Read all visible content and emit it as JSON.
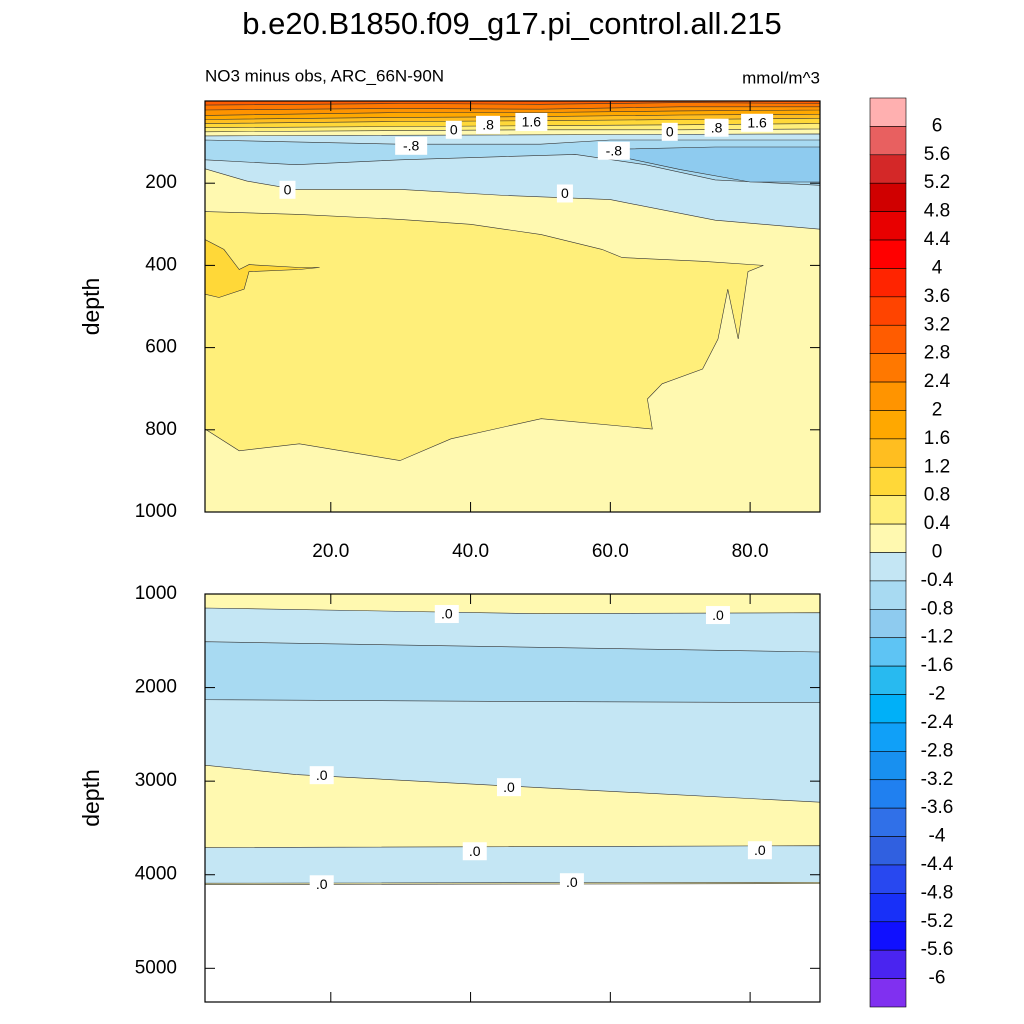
{
  "chart_data": {
    "type": "contour",
    "title": "b.e20.B1850.f09_g17.pi_control.all.215",
    "subtitle": "NO3 minus obs, ARC_66N-90N",
    "units": "mmol/m^3",
    "xlim": [
      2,
      90
    ],
    "xticks": [
      {
        "value": 20,
        "label": "20.0"
      },
      {
        "value": 40,
        "label": "40.0"
      },
      {
        "value": 60,
        "label": "60.0"
      },
      {
        "value": 80,
        "label": "80.0"
      }
    ],
    "colorbar": {
      "levels": [
        6,
        5.6,
        5.2,
        4.8,
        4.4,
        4,
        3.6,
        3.2,
        2.8,
        2.4,
        2,
        1.6,
        1.2,
        0.8,
        0.4,
        0,
        -0.4,
        -0.8,
        -1.2,
        -1.6,
        -2,
        -2.4,
        -2.8,
        -3.2,
        -3.6,
        -4,
        -4.4,
        -4.8,
        -5.2,
        -5.6,
        -6
      ],
      "colors": [
        "#ffb0b0",
        "#e86060",
        "#d42828",
        "#d00000",
        "#e80000",
        "#ff0000",
        "#ff2400",
        "#ff4400",
        "#ff5c00",
        "#ff7800",
        "#ff9400",
        "#ffa800",
        "#ffbe20",
        "#ffd838",
        "#ffef7a",
        "#fff9b0",
        "#c4e6f4",
        "#a8daf2",
        "#8ecbef",
        "#5ec4f4",
        "#28baf0",
        "#00b0f8",
        "#10a0f8",
        "#1890f0",
        "#2080f0",
        "#3070e8",
        "#3060e0",
        "#2848f0",
        "#1830f8",
        "#1010ff",
        "#4a24f0",
        "#8030f0"
      ]
    },
    "panels": [
      {
        "ylabel": "depth",
        "ylim": [
          0,
          1000
        ],
        "yticks": [
          200,
          400,
          600,
          800,
          1000
        ],
        "regions": [
          {
            "level": 0,
            "x": [
              2,
              90,
              90,
              2
            ],
            "y": [
              0,
              0,
              1000,
              1000
            ]
          },
          {
            "level": -0.4,
            "x": [
              2,
              90,
              90,
              75,
              60,
              45,
              30,
              15,
              8,
              2
            ],
            "y": [
              85,
              80,
              312,
              290,
              240,
              230,
              215,
              215,
              195,
              165
            ]
          },
          {
            "level": -0.8,
            "x": [
              2,
              30,
              50,
              60,
              90,
              90,
              75,
              65,
              55,
              30,
              15,
              2
            ],
            "y": [
              95,
              105,
              105,
              95,
              95,
              205,
              192,
              155,
              130,
              143,
              155,
              143
            ]
          },
          {
            "level": -1.2,
            "x": [
              59,
              75,
              90,
              90,
              80,
              70,
              62
            ],
            "y": [
              118,
              112,
              112,
              197,
              197,
              167,
              138
            ]
          },
          {
            "level": 0.4,
            "x": [
              2,
              15.5,
              29.9,
              40,
              50.1,
              58.8,
              61.7,
              73.2,
              81.9,
              79.7,
              78.3,
              76.8,
              75.4,
              73.2,
              67.4,
              65.3,
              66,
              50.1,
              37.2,
              29.9,
              15.5,
              6.9,
              2
            ],
            "y": [
              269,
              276,
              288,
              300,
              325,
              361,
              381,
              390,
              400,
              415,
              579,
              458,
              579,
              652,
              688,
              725,
              798,
              773,
              822,
              875,
              834,
              851,
              798
            ]
          },
          {
            "level": 0.8,
            "x": [
              2,
              4.7,
              6.9,
              8.3,
              15.5,
              18.4,
              15.5,
              8.3,
              7.6,
              4,
              2
            ],
            "y": [
              337,
              361,
              410,
              398,
              405,
              405,
              410,
              415,
              458,
              478,
              470
            ]
          },
          {
            "level": 0.4,
            "x": [
              2,
              90,
              90,
              70,
              50,
              30,
              2
            ],
            "y": [
              0,
              0,
              68,
              70,
              70,
              72,
              75
            ]
          },
          {
            "level": 0.8,
            "x": [
              2,
              90,
              90,
              70,
              50,
              30,
              2
            ],
            "y": [
              0,
              0,
              55,
              58,
              60,
              62,
              65
            ]
          },
          {
            "level": 1.2,
            "x": [
              2,
              90,
              90,
              70,
              50,
              30,
              2
            ],
            "y": [
              0,
              0,
              42,
              45,
              48,
              50,
              55
            ]
          },
          {
            "level": 1.6,
            "x": [
              2,
              90,
              90,
              70,
              50,
              30,
              2
            ],
            "y": [
              0,
              0,
              32,
              34,
              38,
              40,
              45
            ]
          },
          {
            "level": 2,
            "x": [
              2,
              90,
              90,
              70,
              50,
              30,
              2
            ],
            "y": [
              0,
              0,
              22,
              24,
              28,
              28,
              35
            ]
          },
          {
            "level": 2.4,
            "x": [
              2,
              90,
              90,
              70,
              50,
              30,
              2
            ],
            "y": [
              0,
              0,
              14,
              14,
              20,
              18,
              22
            ]
          },
          {
            "level": 2.8,
            "x": [
              2,
              90,
              90,
              70,
              50,
              30,
              2
            ],
            "y": [
              0,
              0,
              6,
              4,
              8,
              6,
              10
            ]
          }
        ],
        "contour_labels": [
          {
            "value": 0,
            "label": "0",
            "x": 37.6,
            "y": 70
          },
          {
            "value": 0.8,
            "label": ".8",
            "x": 42.5,
            "y": 58
          },
          {
            "value": 1.6,
            "label": "1.6",
            "x": 48.7,
            "y": 51
          },
          {
            "value": 0,
            "label": "0",
            "x": 68.5,
            "y": 75
          },
          {
            "value": 0.8,
            "label": ".8",
            "x": 75.2,
            "y": 65
          },
          {
            "value": 1.6,
            "label": "1.6",
            "x": 81,
            "y": 53
          },
          {
            "value": -0.8,
            "label": "-.8",
            "x": 31.5,
            "y": 109
          },
          {
            "value": -0.8,
            "label": "-.8",
            "x": 60.5,
            "y": 121
          },
          {
            "value": 0,
            "label": "0",
            "x": 13.8,
            "y": 216
          },
          {
            "value": 0,
            "label": "0",
            "x": 53.5,
            "y": 225
          }
        ]
      },
      {
        "ylabel": "depth",
        "ylim": [
          1000,
          5360
        ],
        "yticks": [
          1000,
          2000,
          3000,
          4000,
          5000
        ],
        "regions": [
          {
            "level": 0,
            "x": [
              2,
              90,
              90,
              2
            ],
            "y": [
              1000,
              1000,
              4095,
              4105
            ]
          },
          {
            "level": -0.4,
            "x": [
              2,
              50,
              90,
              90,
              50,
              15,
              2
            ],
            "y": [
              1150,
              1210,
              1200,
              3225,
              3070,
              2930,
              2830
            ]
          },
          {
            "level": -0.8,
            "x": [
              2,
              90,
              90,
              50,
              2
            ],
            "y": [
              1510,
              1620,
              2160,
              2150,
              2130
            ]
          },
          {
            "level": -0.4,
            "x": [
              2,
              90,
              90,
              2
            ],
            "y": [
              3710,
              3690,
              4080,
              4090
            ]
          }
        ],
        "contour_labels": [
          {
            "value": 0,
            "label": ".0",
            "x": 36.6,
            "y": 1214
          },
          {
            "value": 0,
            "label": ".0",
            "x": 75.4,
            "y": 1225
          },
          {
            "value": 0,
            "label": ".0",
            "x": 18.7,
            "y": 2936
          },
          {
            "value": 0,
            "label": ".0",
            "x": 45.5,
            "y": 3064
          },
          {
            "value": 0,
            "label": ".0",
            "x": 40.6,
            "y": 3749
          },
          {
            "value": 0,
            "label": ".0",
            "x": 81.4,
            "y": 3738
          },
          {
            "value": 0,
            "label": ".0",
            "x": 18.7,
            "y": 4102
          },
          {
            "value": 0,
            "label": ".0",
            "x": 54.5,
            "y": 4080
          }
        ]
      }
    ]
  }
}
